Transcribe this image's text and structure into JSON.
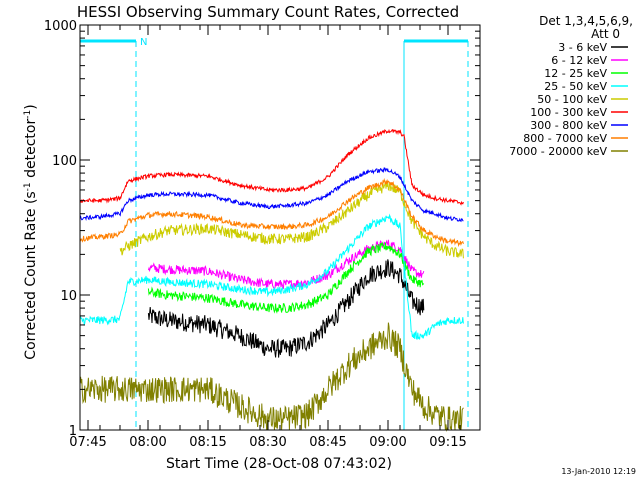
{
  "chart_data": {
    "type": "line",
    "title": "HESSI Observing Summary Count Rates, Corrected",
    "xlabel": "Start Time (28-Oct-08 07:43:02)",
    "ylabel_main": "Corrected Count Rate (s",
    "ylabel_sup1": "-1",
    "ylabel_mid": " detector",
    "ylabel_sup2": "-1",
    "ylabel_end": ")",
    "x_ticks": [
      "07:45",
      "08:00",
      "08:15",
      "08:30",
      "08:45",
      "09:00",
      "09:15"
    ],
    "x_tick_minutes": [
      2,
      17,
      32,
      47,
      62,
      77,
      92
    ],
    "xlim_minutes": [
      0,
      100
    ],
    "y_ticks": [
      "1",
      "10",
      "100",
      "1000"
    ],
    "y_tick_values": [
      1,
      10,
      100,
      1000
    ],
    "ylim": [
      1,
      1000
    ],
    "yscale": "log",
    "legend_header": [
      "Det 1,3,4,5,6,9,",
      "Att 0"
    ],
    "legend_position": "right",
    "night_marker": "N",
    "night_bars": [
      [
        0,
        14
      ],
      [
        81,
        97
      ]
    ],
    "timestamp": "13-Jan-2010 12:19",
    "series": [
      {
        "name": "3 - 6 keV",
        "color": "#000000",
        "min": [
          2,
          10,
          17,
          22,
          32,
          40,
          47,
          52,
          57,
          62,
          67,
          72,
          77,
          80,
          83,
          86
        ],
        "values": [
          null,
          null,
          7,
          6.5,
          6,
          5,
          4,
          4,
          4.5,
          6,
          9,
          14,
          16,
          14,
          9,
          8
        ]
      },
      {
        "name": "6 - 12 keV",
        "color": "#ff00ff",
        "min": [
          2,
          10,
          17,
          22,
          32,
          40,
          47,
          52,
          57,
          62,
          67,
          72,
          77,
          80,
          83,
          86
        ],
        "values": [
          null,
          null,
          16,
          15.5,
          15,
          13,
          12,
          12,
          12.5,
          14,
          18,
          22,
          24,
          22,
          15,
          14
        ]
      },
      {
        "name": "12 - 25 keV",
        "color": "#00ff00",
        "min": [
          2,
          10,
          17,
          22,
          32,
          40,
          47,
          52,
          57,
          62,
          67,
          72,
          77,
          80,
          83,
          86
        ],
        "values": [
          null,
          null,
          10.5,
          10,
          9.5,
          8.5,
          8,
          8,
          8.5,
          10,
          15,
          21,
          23,
          20,
          13,
          12
        ]
      },
      {
        "name": "25 - 50 keV",
        "color": "#00ffff",
        "min": [
          0,
          5,
          10,
          12,
          17,
          22,
          32,
          40,
          47,
          52,
          57,
          62,
          67,
          72,
          77,
          80,
          83,
          86,
          89,
          92,
          96
        ],
        "values": [
          6.5,
          6.5,
          6.6,
          12.5,
          13,
          12.5,
          12,
          11,
          10.5,
          11,
          12,
          15,
          22,
          32,
          38,
          32,
          5,
          5,
          6,
          6.5,
          6.5
        ]
      },
      {
        "name": "50 - 100 keV",
        "color": "#cccc00",
        "min": [
          10,
          12,
          17,
          22,
          32,
          40,
          47,
          52,
          57,
          62,
          67,
          72,
          77,
          80,
          83,
          86,
          89,
          92,
          96
        ],
        "values": [
          21,
          23,
          27,
          30,
          31,
          28,
          26,
          26,
          27,
          32,
          42,
          55,
          65,
          58,
          35,
          27,
          23,
          21,
          20
        ]
      },
      {
        "name": "100 - 300 keV",
        "color": "#ff0000",
        "min": [
          0,
          5,
          10,
          12,
          17,
          22,
          32,
          40,
          47,
          52,
          57,
          62,
          67,
          72,
          77,
          80,
          81,
          83,
          86,
          89,
          92,
          96
        ],
        "values": [
          50,
          50,
          52,
          70,
          76,
          78,
          76,
          65,
          60,
          60,
          62,
          75,
          110,
          145,
          165,
          160,
          150,
          65,
          55,
          52,
          50,
          48
        ]
      },
      {
        "name": "300 - 800 keV",
        "color": "#0000ff",
        "min": [
          0,
          5,
          10,
          12,
          17,
          22,
          32,
          40,
          47,
          52,
          57,
          62,
          67,
          72,
          77,
          80,
          83,
          86,
          89,
          92,
          96
        ],
        "values": [
          37,
          38,
          40,
          50,
          55,
          56,
          55,
          48,
          45,
          46,
          48,
          55,
          70,
          82,
          85,
          75,
          50,
          42,
          40,
          37,
          36
        ]
      },
      {
        "name": "800 - 7000 keV",
        "color": "#ff7f00",
        "min": [
          0,
          5,
          10,
          12,
          17,
          22,
          32,
          40,
          47,
          52,
          57,
          62,
          67,
          72,
          77,
          80,
          83,
          86,
          89,
          92,
          96
        ],
        "values": [
          26,
          27,
          28,
          35,
          39,
          40,
          38,
          33,
          32,
          32,
          33,
          38,
          50,
          62,
          70,
          60,
          38,
          30,
          27,
          25,
          24
        ]
      },
      {
        "name": "7000 - 20000 keV",
        "color": "#808000",
        "min": [
          0,
          5,
          10,
          12,
          17,
          22,
          32,
          40,
          47,
          52,
          57,
          62,
          67,
          72,
          77,
          80,
          83,
          86,
          89,
          92,
          96
        ],
        "values": [
          2,
          2,
          2,
          2,
          2,
          2,
          2,
          1.5,
          1.2,
          1.2,
          1.3,
          2,
          3,
          4,
          5,
          4,
          2,
          1.5,
          1.3,
          1.2,
          1.2
        ]
      }
    ]
  }
}
